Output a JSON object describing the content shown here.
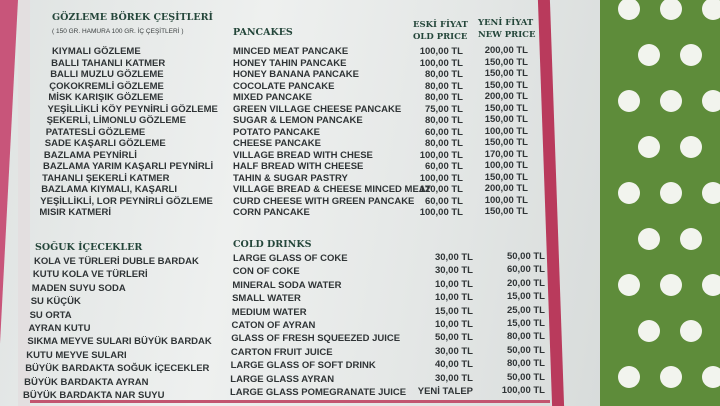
{
  "gozleme": {
    "title": "GÖZLEME BÖREK ÇEŞİTLERİ",
    "subtitle": "( 150 GR. HAMURA 100 GR. İÇ ÇEŞİTLERİ )",
    "en_title": "PANCAKES",
    "old_price_tr": "ESKİ FİYAT",
    "old_price_en": "OLD PRICE",
    "new_price_tr": "YENİ FİYAT",
    "new_price_en": "NEW PRICE",
    "items": [
      {
        "tr": "KIYMALI GÖZLEME",
        "en": "MINCED MEAT PANCAKE",
        "old": "100,00 TL",
        "new": "200,00 TL"
      },
      {
        "tr": "BALLI TAHANLI KATMER",
        "en": "HONEY TAHIN PANCAKE",
        "old": "100,00 TL",
        "new": "150,00 TL"
      },
      {
        "tr": "BALLI MUZLU GÖZLEME",
        "en": "HONEY BANANA PANCAKE",
        "old": "80,00 TL",
        "new": "150,00 TL"
      },
      {
        "tr": "ÇOKOKREMLİ GÖZLEME",
        "en": "COCOLATE PANCAKE",
        "old": "80,00 TL",
        "new": "150,00 TL"
      },
      {
        "tr": "MİSK KARIŞIK GÖZLEME",
        "en": "MIXED PANCAKE",
        "old": "80,00 TL",
        "new": "200,00 TL"
      },
      {
        "tr": "YEŞİLLİKLİ KÖY PEYNİRLİ GÖZLEME",
        "en": "GREEN VILLAGE CHEESE PANCAKE",
        "old": "75,00 TL",
        "new": "150,00 TL"
      },
      {
        "tr": "ŞEKERLİ, LİMONLU GÖZLEME",
        "en": "SUGAR & LEMON PANCAKE",
        "old": "80,00 TL",
        "new": "150,00 TL"
      },
      {
        "tr": "PATATESLİ GÖZLEME",
        "en": "POTATO PANCAKE",
        "old": "60,00 TL",
        "new": "100,00 TL"
      },
      {
        "tr": "SADE KAŞARLI GÖZLEME",
        "en": "CHEESE PANCAKE",
        "old": "80,00 TL",
        "new": "150,00 TL"
      },
      {
        "tr": "BAZLAMA PEYNİRLİ",
        "en": "VILLAGE BREAD WITH CHESE",
        "old": "100,00 TL",
        "new": "170,00 TL"
      },
      {
        "tr": "BAZLAMA YARIM KAŞARLI PEYNİRLİ",
        "en": "HALF BREAD WITH CHEESE",
        "old": "60,00 TL",
        "new": "100,00 TL"
      },
      {
        "tr": "TAHANLI ŞEKERLİ KATMER",
        "en": "TAHIN & SUGAR PASTRY",
        "old": "100,00 TL",
        "new": "150,00 TL"
      },
      {
        "tr": "BAZLAMA KIYMALI, KAŞARLI",
        "en": "VILLAGE BREAD & CHEESE MINCED MEAT",
        "old": "120,00 TL",
        "new": "200,00 TL"
      },
      {
        "tr": "YEŞİLLİKLİ, LOR PEYNİRLİ GÖZLEME",
        "en": "CURD CHEESE WITH GREEN PANCAKE",
        "old": "60,00 TL",
        "new": "100,00 TL"
      },
      {
        "tr": "MISIR KATMERİ",
        "en": "CORN PANCAKE",
        "old": "100,00 TL",
        "new": "150,00 TL"
      }
    ]
  },
  "drinks": {
    "title": "SOĞUK İÇECEKLER",
    "en_title": "COLD DRINKS",
    "items": [
      {
        "tr": "KOLA VE TÜRLERİ DUBLE BARDAK",
        "en": "LARGE GLASS OF COKE",
        "old": "30,00 TL",
        "new": "50,00 TL"
      },
      {
        "tr": "KUTU KOLA VE TÜRLERİ",
        "en": "CON OF COKE",
        "old": "30,00 TL",
        "new": "60,00 TL"
      },
      {
        "tr": "MADEN SUYU SODA",
        "en": "MINERAL SODA WATER",
        "old": "10,00 TL",
        "new": "20,00 TL"
      },
      {
        "tr": "SU KÜÇÜK",
        "en": "SMALL WATER",
        "old": "10,00 TL",
        "new": "15,00 TL"
      },
      {
        "tr": "SU ORTA",
        "en": "MEDIUM WATER",
        "old": "15,00 TL",
        "new": "25,00 TL"
      },
      {
        "tr": "AYRAN KUTU",
        "en": "CATON OF AYRAN",
        "old": "10,00 TL",
        "new": "15,00 TL"
      },
      {
        "tr": "SIKMA MEYVE SULARI BÜYÜK BARDAK",
        "en": "GLASS OF FRESH SQUEEZED JUICE",
        "old": "50,00 TL",
        "new": "80,00 TL"
      },
      {
        "tr": "KUTU MEYVE SULARI",
        "en": "CARTON FRUIT JUICE",
        "old": "30,00 TL",
        "new": "50,00 TL"
      },
      {
        "tr": "BÜYÜK BARDAKTA SOĞUK İÇECEKLER",
        "en": "LARGE GLASS OF SOFT DRINK",
        "old": "40,00 TL",
        "new": "80,00 TL"
      },
      {
        "tr": "BÜYÜK BARDAKTA AYRAN",
        "en": "LARGE GLASS AYRAN",
        "old": "30,00 TL",
        "new": "50,00 TL"
      },
      {
        "tr": "BÜYÜK BARDAKTA NAR SUYU",
        "en": "LARGE GLASS POMEGRANATE JUICE",
        "old": "YENİ TALEP",
        "new": "100,00 TL"
      }
    ]
  },
  "colors": {
    "heading": "#24463a",
    "border": "#b93a5c",
    "tablecloth": "#5e8c3a"
  }
}
